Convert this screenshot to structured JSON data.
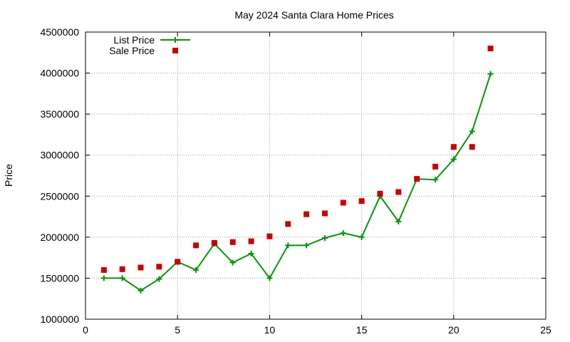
{
  "chart_data": {
    "type": "line",
    "title": "May 2024 Santa Clara Home Prices",
    "xlabel": "",
    "ylabel": "Price",
    "xlim": [
      0,
      25
    ],
    "ylim": [
      1000000,
      4500000
    ],
    "x_ticks": [
      "0",
      "5",
      "10",
      "15",
      "20",
      "25"
    ],
    "y_ticks": [
      "1000000",
      "1500000",
      "2000000",
      "2500000",
      "3000000",
      "3500000",
      "4000000",
      "4500000"
    ],
    "grid": true,
    "legend_position": "top-left",
    "series": [
      {
        "name": "List Price",
        "style": "line-points",
        "color": "#009900",
        "x": [
          1,
          2,
          3,
          4,
          5,
          6,
          7,
          8,
          9,
          10,
          11,
          12,
          13,
          14,
          15,
          16,
          17,
          18,
          19,
          20,
          21,
          22
        ],
        "y": [
          1500000,
          1500000,
          1350000,
          1490000,
          1700000,
          1600000,
          1920000,
          1690000,
          1800000,
          1500000,
          1900000,
          1900000,
          1990000,
          2050000,
          2000000,
          2500000,
          2190000,
          2710000,
          2700000,
          2950000,
          3290000,
          3990000
        ]
      },
      {
        "name": "Sale Price",
        "style": "points",
        "color": "#cc0000",
        "x": [
          1,
          2,
          3,
          4,
          5,
          6,
          7,
          8,
          9,
          10,
          11,
          12,
          13,
          14,
          15,
          16,
          17,
          18,
          19,
          20,
          21,
          22
        ],
        "y": [
          1600000,
          1610000,
          1630000,
          1640000,
          1700000,
          1900000,
          1930000,
          1940000,
          1950000,
          2010000,
          2160000,
          2280000,
          2290000,
          2420000,
          2440000,
          2530000,
          2550000,
          2710000,
          2860000,
          3100000,
          3100000,
          4300000
        ]
      }
    ]
  }
}
